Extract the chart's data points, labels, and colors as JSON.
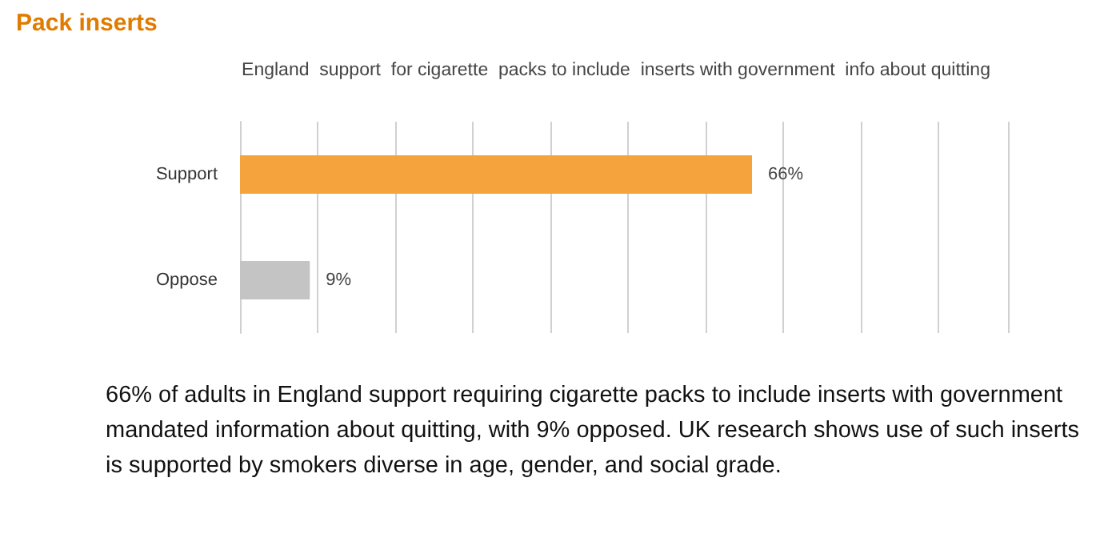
{
  "chart_data": {
    "type": "bar",
    "orientation": "horizontal",
    "title": "Pack inserts",
    "subtitle": "England  support  for cigarette  packs to include  inserts with government  info about quitting",
    "categories": [
      "Support",
      "Oppose"
    ],
    "values": [
      66,
      9
    ],
    "colors": [
      "#f5a33c",
      "#c4c4c4"
    ],
    "value_labels": [
      "66%",
      "9%"
    ],
    "grid": "x",
    "tick_labels": "y",
    "annotations": [
      "66% of adults in England support requiring cigarette packs to include inserts with government mandated information about quitting, with 9% opposed. UK research shows use of such inserts is supported by smokers diverse in age, gender, and social grade."
    ]
  }
}
